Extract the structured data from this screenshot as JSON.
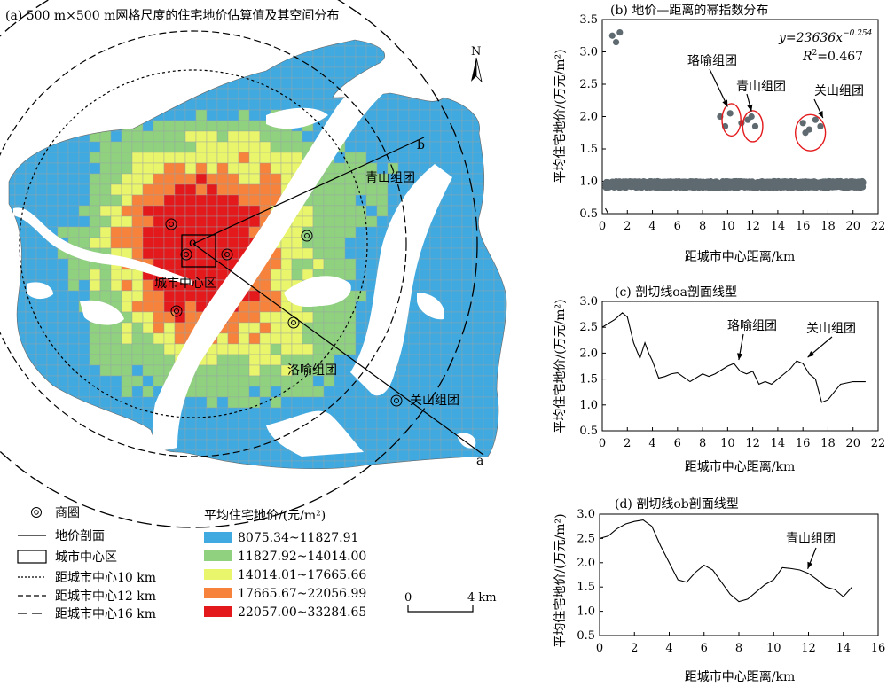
{
  "palette": {
    "class1": "#3fa9e0",
    "class2": "#8fd17f",
    "class3": "#e9f56a",
    "class4": "#f6823c",
    "class5": "#e3191c",
    "scatter": "#5e6a70",
    "highlight": "#e3191c"
  },
  "chart_data": [
    {
      "type": "map",
      "title": "(a) 500 m×500 m网格尺度的住宅地价估算值及其空间分布",
      "north_label": "N",
      "place_labels": [
        "城市中心区",
        "青山组团",
        "洛喻组团",
        "关山组团"
      ],
      "profile_endpoints": [
        "o",
        "a",
        "b"
      ],
      "scalebar": {
        "start": "0",
        "end": "4 km"
      },
      "legend_symbols": [
        {
          "icon": "business-circle-icon",
          "label": "商圈"
        },
        {
          "icon": "solid-line",
          "label": "地价剖面"
        },
        {
          "icon": "rectangle",
          "label": "城市中心区"
        },
        {
          "icon": "dotted-line",
          "label": "距城市中心10 km"
        },
        {
          "icon": "dash-line",
          "label": "距城市中心12 km"
        },
        {
          "icon": "long-dash-line",
          "label": "距城市中心16 km"
        }
      ],
      "legend_title": "平均住宅地价/(元/m²)",
      "classes": [
        {
          "range": "8075.34~11827.91",
          "color": "#3fa9e0"
        },
        {
          "range": "11827.92~14014.00",
          "color": "#8fd17f"
        },
        {
          "range": "14014.01~17665.66",
          "color": "#e9f56a"
        },
        {
          "range": "17665.67~22056.99",
          "color": "#f6823c"
        },
        {
          "range": "22057.00~33284.65",
          "color": "#e3191c"
        }
      ]
    },
    {
      "type": "scatter",
      "title": "(b) 地价—距离的幂指数分布",
      "xlabel": "距城市中心距离/km",
      "ylabel": "平均住宅地价/(万元/m²)",
      "xlim": [
        0,
        22
      ],
      "ylim": [
        0.5,
        3.5
      ],
      "xticks": [
        "0",
        "2",
        "4",
        "6",
        "8",
        "10",
        "12",
        "14",
        "16",
        "18",
        "20",
        "22"
      ],
      "yticks": [
        "0.5",
        "1.0",
        "1.5",
        "2.0",
        "2.5",
        "3.0",
        "3.5"
      ],
      "fit": {
        "a": 23636,
        "b": -0.254,
        "equation": "y=23636x",
        "exponent": "−0.254",
        "r2_label": "R",
        "r2_value": "=0.467"
      },
      "annotations": [
        {
          "text": "珞喻组团",
          "x": 10.3,
          "y": 1.95
        },
        {
          "text": "青山组团",
          "x": 12,
          "y": 1.85
        },
        {
          "text": "关山组团",
          "x": 16.6,
          "y": 1.75
        }
      ]
    },
    {
      "type": "line",
      "title": "(c) 剖切线oa剖面线型",
      "xlabel": "距城市中心距离/km",
      "ylabel": "平均住宅地价/(万元/m²)",
      "xlim": [
        0,
        22
      ],
      "ylim": [
        0.5,
        3.0
      ],
      "xticks": [
        "0",
        "2",
        "4",
        "6",
        "8",
        "10",
        "12",
        "14",
        "16",
        "18",
        "20",
        "22"
      ],
      "yticks": [
        "0.5",
        "1.0",
        "1.5",
        "2.0",
        "2.5",
        "3.0"
      ],
      "x": [
        0,
        1,
        1.6,
        2,
        2.5,
        3,
        3.4,
        3.7,
        4,
        4.5,
        5,
        5.5,
        6,
        7,
        8,
        8.5,
        9,
        10,
        10.5,
        11,
        11.5,
        12,
        12.5,
        13,
        13.5,
        14,
        14.5,
        15,
        15.5,
        16,
        16.5,
        17,
        17.5,
        18,
        18.5,
        19,
        20,
        21
      ],
      "y": [
        2.5,
        2.65,
        2.78,
        2.7,
        2.2,
        1.9,
        2.2,
        2.0,
        1.85,
        1.52,
        1.55,
        1.6,
        1.62,
        1.45,
        1.6,
        1.55,
        1.6,
        1.75,
        1.8,
        1.65,
        1.6,
        1.65,
        1.4,
        1.45,
        1.4,
        1.5,
        1.6,
        1.7,
        1.85,
        1.8,
        1.6,
        1.5,
        1.05,
        1.1,
        1.25,
        1.4,
        1.45,
        1.45
      ],
      "annotations": [
        {
          "text": "珞喻组团",
          "x": 10.6,
          "y": 1.8
        },
        {
          "text": "关山组团",
          "x": 16.1,
          "y": 1.85
        }
      ]
    },
    {
      "type": "line",
      "title": "(d) 剖切线ob剖面线型",
      "xlabel": "距城市中心距离/km",
      "ylabel": "平均住宅地价/(万元/m²)",
      "xlim": [
        0,
        16
      ],
      "ylim": [
        0.5,
        3.0
      ],
      "xticks": [
        "0",
        "2",
        "4",
        "6",
        "8",
        "10",
        "12",
        "14",
        "16"
      ],
      "yticks": [
        "0.5",
        "1.0",
        "1.5",
        "2.0",
        "2.5",
        "3.0"
      ],
      "x": [
        0,
        0.5,
        1,
        1.5,
        2,
        2.5,
        3,
        3.5,
        4,
        4.5,
        5,
        5.5,
        6,
        6.5,
        7,
        7.5,
        8,
        8.5,
        9,
        9.5,
        10,
        10.5,
        11,
        11.5,
        12,
        12.5,
        13,
        13.5,
        14,
        14.5
      ],
      "y": [
        2.5,
        2.55,
        2.7,
        2.8,
        2.85,
        2.88,
        2.75,
        2.35,
        2.0,
        1.65,
        1.6,
        1.8,
        1.95,
        1.85,
        1.6,
        1.35,
        1.2,
        1.25,
        1.4,
        1.55,
        1.65,
        1.9,
        1.88,
        1.85,
        1.78,
        1.65,
        1.5,
        1.45,
        1.3,
        1.5
      ],
      "annotations": [
        {
          "text": "青山组团",
          "x": 11.8,
          "y": 1.8
        }
      ]
    }
  ]
}
